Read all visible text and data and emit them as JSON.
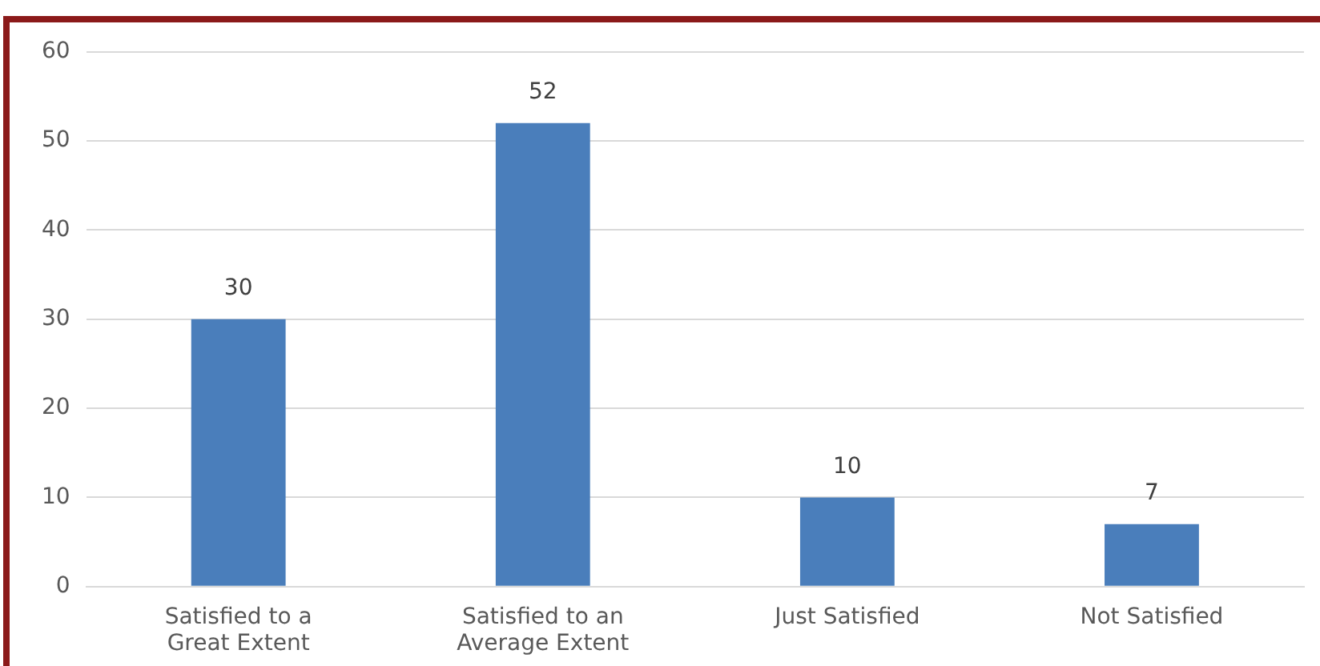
{
  "chart_data": {
    "type": "bar",
    "categories": [
      "Satisfied to a Great Extent",
      "Satisfied to an Average Extent",
      "Just Satisfied",
      "Not Satisfied"
    ],
    "values": [
      30,
      52,
      10,
      7
    ],
    "color": "#4a7ebb",
    "ylim": [
      0,
      60
    ],
    "yticks": [
      0,
      10,
      20,
      30,
      40,
      50,
      60
    ],
    "grid": "y",
    "data_labels": true,
    "legend": false
  }
}
